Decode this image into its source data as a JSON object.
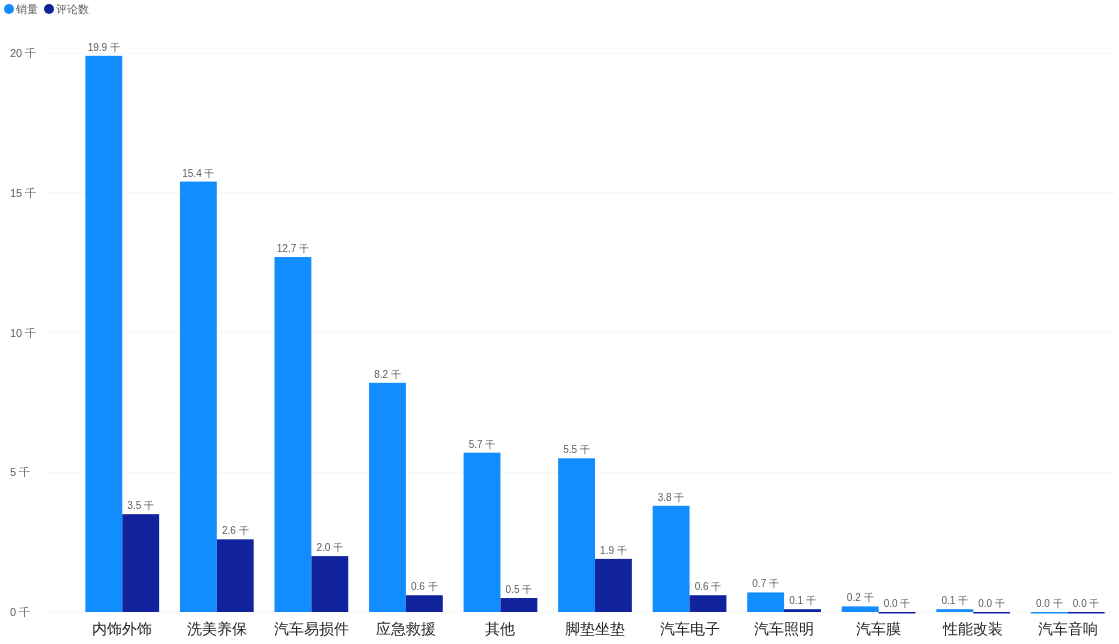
{
  "chart_data": {
    "type": "bar",
    "categories": [
      "内饰外饰",
      "洗美养保",
      "汽车易损件",
      "应急救援",
      "其他",
      "脚垫坐垫",
      "汽车电子",
      "汽车照明",
      "汽车膜",
      "性能改装",
      "汽车音响"
    ],
    "series": [
      {
        "name": "销量",
        "color": "#118dff",
        "values": [
          19.9,
          15.4,
          12.7,
          8.2,
          5.7,
          5.5,
          3.8,
          0.7,
          0.2,
          0.1,
          0.0
        ],
        "value_labels": [
          "19.9 千",
          "15.4 千",
          "12.7 千",
          "8.2 千",
          "5.7 千",
          "5.5 千",
          "3.8 千",
          "0.7 千",
          "0.2 千",
          "0.1 千",
          "0.0 千"
        ]
      },
      {
        "name": "评论数",
        "color": "#12239e",
        "values": [
          3.5,
          2.6,
          2.0,
          0.6,
          0.5,
          1.9,
          0.6,
          0.1,
          0.0,
          0.0,
          0.0
        ],
        "value_labels": [
          "3.5 千",
          "2.6 千",
          "2.0 千",
          "0.6 千",
          "0.5 千",
          "1.9 千",
          "0.6 千",
          "0.1 千",
          "0.0 千",
          "0.0 千",
          "0.0 千"
        ]
      }
    ],
    "ylim": [
      0,
      20
    ],
    "yticks": [
      {
        "value": 0,
        "label": "0 千"
      },
      {
        "value": 5,
        "label": "5 千"
      },
      {
        "value": 10,
        "label": "10 千"
      },
      {
        "value": 15,
        "label": "15 千"
      },
      {
        "value": 20,
        "label": "20 千"
      }
    ],
    "grid": "y",
    "legend": "top left"
  }
}
